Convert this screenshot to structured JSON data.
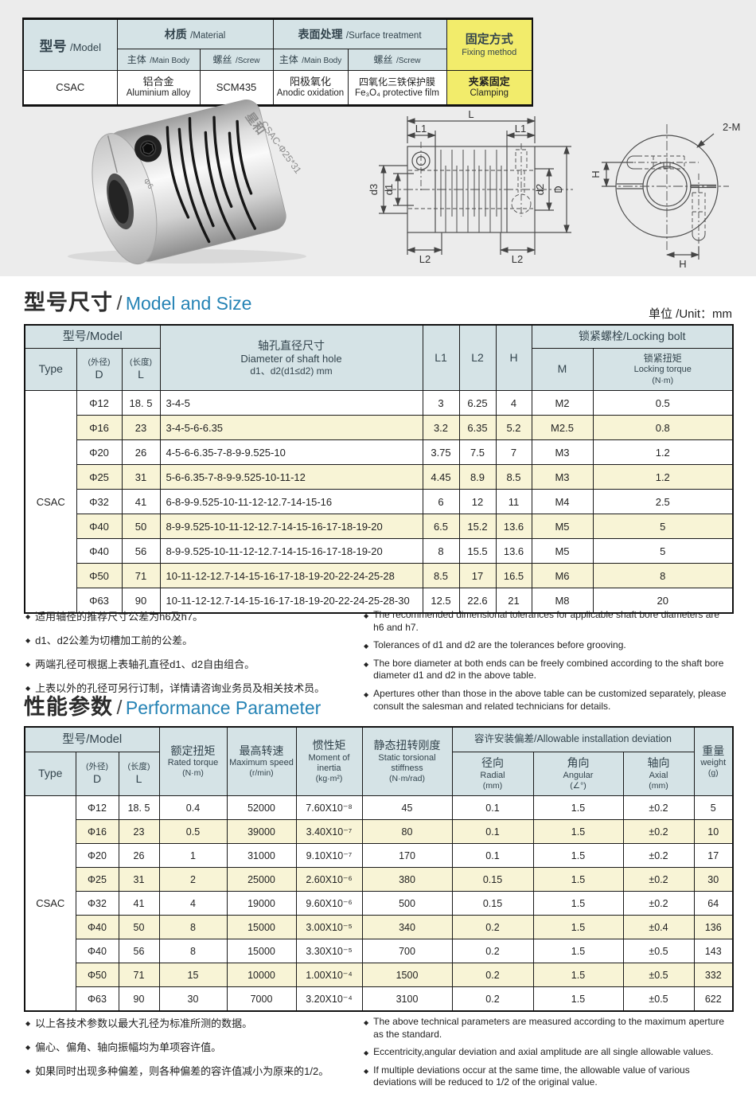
{
  "spec_table": {
    "header": {
      "model_zh": "型号",
      "model_en": "/Model",
      "material_zh": "材质",
      "material_en": "/Material",
      "surface_zh": "表面处理",
      "surface_en": "/Surface treatment",
      "fixing_zh": "固定方式",
      "fixing_en": "Fixing method",
      "body_zh": "主体",
      "body_en": "/Main Body",
      "screw_zh": "螺丝",
      "screw_en": "/Screw"
    },
    "row": {
      "model": "CSAC",
      "mat_main_zh": "铝合金",
      "mat_main_en": "Aluminium alloy",
      "mat_screw": "SCM435",
      "surf_main_zh": "阳极氧化",
      "surf_main_en": "Anodic oxidation",
      "surf_screw_zh": "四氧化三铁保护膜",
      "surf_screw_en": "Fe₃O₄ protective film",
      "fixing_zh": "夹紧固定",
      "fixing_en": "Clamping"
    }
  },
  "photo": {
    "brand": "星和",
    "model": "CSAC-Φ25*31",
    "bore": "Φ6"
  },
  "drawing": {
    "side": {
      "L": "L",
      "L1a": "L1",
      "L1b": "L1",
      "d3": "d3",
      "d1": "d1",
      "d2": "d2",
      "D": "D",
      "L2a": "L2",
      "L2b": "L2"
    },
    "end": {
      "H_left": "H",
      "H_bottom": "H",
      "screw": "2-M"
    }
  },
  "size_section": {
    "title_zh": "型号尺寸",
    "title_sep": "/",
    "title_en": "Model and Size",
    "unit": "单位 /Unit：mm",
    "table": {
      "type": "CSAC",
      "header": {
        "model": "型号/Model",
        "type_label": "Type",
        "d_zh": "(外径)",
        "d": "D",
        "l_zh": "(长度)",
        "l": "L",
        "shaft_zh": "轴孔直径尺寸",
        "shaft_en": "Diameter of shaft hole",
        "shaft_range": "d1、d2(d1≤d2) mm",
        "l1": "L1",
        "l2": "L2",
        "h": "H",
        "locking": "锁紧螺栓/Locking bolt",
        "m": "M",
        "torque_zh": "锁紧扭矩",
        "torque_en": "Locking torque",
        "torque_unit": "(N·m)"
      },
      "rows": [
        {
          "d": "Φ12",
          "l": "18. 5",
          "holes": "3-4-5",
          "l1": "3",
          "l2": "6.25",
          "h": "4",
          "m": "M2",
          "torque": "0.5"
        },
        {
          "d": "Φ16",
          "l": "23",
          "holes": "3-4-5-6-6.35",
          "l1": "3.2",
          "l2": "6.35",
          "h": "5.2",
          "m": "M2.5",
          "torque": "0.8"
        },
        {
          "d": "Φ20",
          "l": "26",
          "holes": "4-5-6-6.35-7-8-9-9.525-10",
          "l1": "3.75",
          "l2": "7.5",
          "h": "7",
          "m": "M3",
          "torque": "1.2"
        },
        {
          "d": "Φ25",
          "l": "31",
          "holes": "5-6-6.35-7-8-9-9.525-10-11-12",
          "l1": "4.45",
          "l2": "8.9",
          "h": "8.5",
          "m": "M3",
          "torque": "1.2"
        },
        {
          "d": "Φ32",
          "l": "41",
          "holes": "6-8-9-9.525-10-11-12-12.7-14-15-16",
          "l1": "6",
          "l2": "12",
          "h": "11",
          "m": "M4",
          "torque": "2.5"
        },
        {
          "d": "Φ40",
          "l": "50",
          "holes": "8-9-9.525-10-11-12-12.7-14-15-16-17-18-19-20",
          "l1": "6.5",
          "l2": "15.2",
          "h": "13.6",
          "m": "M5",
          "torque": "5"
        },
        {
          "d": "Φ40",
          "l": "56",
          "holes": "8-9-9.525-10-11-12-12.7-14-15-16-17-18-19-20",
          "l1": "8",
          "l2": "15.5",
          "h": "13.6",
          "m": "M5",
          "torque": "5"
        },
        {
          "d": "Φ50",
          "l": "71",
          "holes": "10-11-12-12.7-14-15-16-17-18-19-20-22-24-25-28",
          "l1": "8.5",
          "l2": "17",
          "h": "16.5",
          "m": "M6",
          "torque": "8"
        },
        {
          "d": "Φ63",
          "l": "90",
          "holes": "10-11-12-12.7-14-15-16-17-18-19-20-22-24-25-28-30",
          "l1": "12.5",
          "l2": "22.6",
          "h": "21",
          "m": "M8",
          "torque": "20"
        }
      ]
    },
    "notes_zh": [
      "适用轴径的推荐尺寸公差为h6及h7。",
      "d1、d2公差为切槽加工前的公差。",
      "两端孔径可根据上表轴孔直径d1、d2自由组合。",
      "上表以外的孔径可另行订制，详情请咨询业务员及相关技术员。"
    ],
    "notes_en": [
      "The recommended dimensional tolerances for applicable shaft bore diameters are h6 and h7.",
      "Tolerances of d1 and d2 are the tolerances before grooving.",
      "The bore diameter at both ends can be freely combined according to the shaft bore diameter d1 and d2 in the above table.",
      "Apertures other than those in the above table can be customized separately, please consult the salesman and related technicians for details."
    ]
  },
  "perf_section": {
    "title_zh": "性能参数",
    "title_sep": "/",
    "title_en": "Performance Parameter",
    "table": {
      "type": "CSAC",
      "header": {
        "model": "型号/Model",
        "type_label": "Type",
        "d_zh": "(外径)",
        "d": "D",
        "l_zh": "(长度)",
        "l": "L",
        "rated": {
          "zh": "额定扭矩",
          "en": "Rated torque",
          "unit": "(N·m)"
        },
        "speed": {
          "zh": "最高转速",
          "en": "Maximum speed",
          "unit": "(r/min)"
        },
        "inertia": {
          "zh": "惯性矩",
          "en": "Moment of inertia",
          "unit": "(kg·m²)"
        },
        "stiffness": {
          "zh": "静态扭转刚度",
          "en": "Static torsional stiffness",
          "unit": "(N·m/rad)"
        },
        "deviation": "容许安装偏差/Allowable installation deviation",
        "radial": {
          "zh": "径向",
          "en": "Radial",
          "unit": "(mm)"
        },
        "angular": {
          "zh": "角向",
          "en": "Angular",
          "unit": "(∠°)"
        },
        "axial": {
          "zh": "轴向",
          "en": "Axial",
          "unit": "(mm)"
        },
        "weight": {
          "zh": "重量",
          "en": "weight",
          "unit": "(g)"
        }
      },
      "rows": [
        {
          "d": "Φ12",
          "l": "18. 5",
          "torque": "0.4",
          "speed": "52000",
          "inertia": "7.60X10⁻⁸",
          "stiffness": "45",
          "radial": "0.1",
          "angular": "1.5",
          "axial": "±0.2",
          "weight": "5"
        },
        {
          "d": "Φ16",
          "l": "23",
          "torque": "0.5",
          "speed": "39000",
          "inertia": "3.40X10⁻⁷",
          "stiffness": "80",
          "radial": "0.1",
          "angular": "1.5",
          "axial": "±0.2",
          "weight": "10"
        },
        {
          "d": "Φ20",
          "l": "26",
          "torque": "1",
          "speed": "31000",
          "inertia": "9.10X10⁻⁷",
          "stiffness": "170",
          "radial": "0.1",
          "angular": "1.5",
          "axial": "±0.2",
          "weight": "17"
        },
        {
          "d": "Φ25",
          "l": "31",
          "torque": "2",
          "speed": "25000",
          "inertia": "2.60X10⁻⁶",
          "stiffness": "380",
          "radial": "0.15",
          "angular": "1.5",
          "axial": "±0.2",
          "weight": "30"
        },
        {
          "d": "Φ32",
          "l": "41",
          "torque": "4",
          "speed": "19000",
          "inertia": "9.60X10⁻⁶",
          "stiffness": "500",
          "radial": "0.15",
          "angular": "1.5",
          "axial": "±0.2",
          "weight": "64"
        },
        {
          "d": "Φ40",
          "l": "50",
          "torque": "8",
          "speed": "15000",
          "inertia": "3.00X10⁻⁵",
          "stiffness": "340",
          "radial": "0.2",
          "angular": "1.5",
          "axial": "±0.4",
          "weight": "136"
        },
        {
          "d": "Φ40",
          "l": "56",
          "torque": "8",
          "speed": "15000",
          "inertia": "3.30X10⁻⁵",
          "stiffness": "700",
          "radial": "0.2",
          "angular": "1.5",
          "axial": "±0.5",
          "weight": "143"
        },
        {
          "d": "Φ50",
          "l": "71",
          "torque": "15",
          "speed": "10000",
          "inertia": "1.00X10⁻⁴",
          "stiffness": "1500",
          "radial": "0.2",
          "angular": "1.5",
          "axial": "±0.5",
          "weight": "332"
        },
        {
          "d": "Φ63",
          "l": "90",
          "torque": "30",
          "speed": "7000",
          "inertia": "3.20X10⁻⁴",
          "stiffness": "3100",
          "radial": "0.2",
          "angular": "1.5",
          "axial": "±0.5",
          "weight": "622"
        }
      ]
    },
    "notes_zh": [
      "以上各技术参数以最大孔径为标准所测的数据。",
      "偏心、偏角、轴向振幅均为单项容许值。",
      "如果同时出现多种偏差，则各种偏差的容许值减小为原来的1/2。"
    ],
    "notes_en": [
      "The above technical parameters are measured according to the maximum aperture as the standard.",
      "Eccentricity,angular deviation and axial amplitude are all single allowable values.",
      "If multiple deviations occur at the same time, the allowable value of various deviations will be reduced to 1/2 of the original value."
    ]
  }
}
